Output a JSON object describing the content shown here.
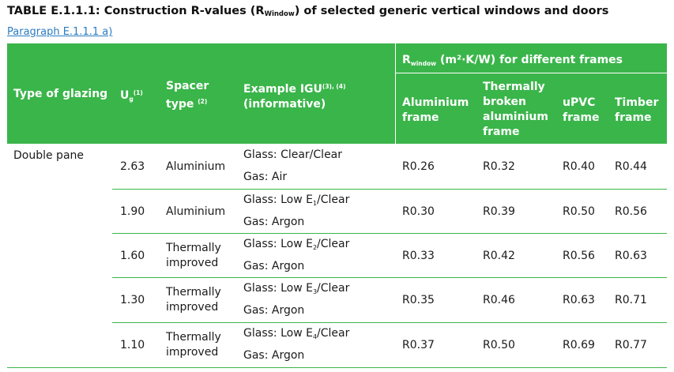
{
  "title": {
    "prefix": "TABLE E.1.1.1:",
    "text_before": " Construction R-values (R",
    "sub": "Window",
    "text_after": ") of selected generic vertical windows and doors"
  },
  "paragraph_link": "Paragraph E.1.1.1 a)",
  "header": {
    "type_of_glazing": "Type of glazing",
    "ug": "U",
    "ug_sub": "g",
    "ug_sup": "(1)",
    "spacer_line1": "Spacer",
    "spacer_line2": "type",
    "spacer_sup": "(2)",
    "igu_line1": "Example IGU",
    "igu_sup": "(3), (4)",
    "igu_line2": "(informative)",
    "rwindow_r": "R",
    "rwindow_sub": "window",
    "rwindow_rest": " (m²·K/W) for different frames",
    "aluminium_line1": "Aluminium",
    "aluminium_line2": "frame",
    "thermally_line1": "Thermally",
    "thermally_line2": "broken",
    "thermally_line3": "aluminium",
    "thermally_line4": "frame",
    "upvc_line1": "uPVC",
    "upvc_line2": "frame",
    "timber_line1": "Timber",
    "timber_line2": "frame"
  },
  "glazing_type": "Double pane",
  "rows": [
    {
      "ug": "2.63",
      "spacer1": "Aluminium",
      "spacer2": "",
      "glass_pre": "Glass: Clear/Clear",
      "glass_sub": "",
      "glass_post": "",
      "gas": "Gas: Air",
      "alu": "R0.26",
      "tb": "R0.32",
      "upvc": "R0.40",
      "timber": "R0.44"
    },
    {
      "ug": "1.90",
      "spacer1": "Aluminium",
      "spacer2": "",
      "glass_pre": "Glass: Low E",
      "glass_sub": "1",
      "glass_post": "/Clear",
      "gas": "Gas: Argon",
      "alu": "R0.30",
      "tb": "R0.39",
      "upvc": "R0.50",
      "timber": "R0.56"
    },
    {
      "ug": "1.60",
      "spacer1": "Thermally",
      "spacer2": "improved",
      "glass_pre": "Glass: Low E",
      "glass_sub": "2",
      "glass_post": "/Clear",
      "gas": "Gas: Argon",
      "alu": "R0.33",
      "tb": "R0.42",
      "upvc": "R0.56",
      "timber": "R0.63"
    },
    {
      "ug": "1.30",
      "spacer1": "Thermally",
      "spacer2": "improved",
      "glass_pre": "Glass: Low E",
      "glass_sub": "3",
      "glass_post": "/Clear",
      "gas": "Gas: Argon",
      "alu": "R0.35",
      "tb": "R0.46",
      "upvc": "R0.63",
      "timber": "R0.71"
    },
    {
      "ug": "1.10",
      "spacer1": "Thermally",
      "spacer2": "improved",
      "glass_pre": "Glass: Low E",
      "glass_sub": "4",
      "glass_post": "/Clear",
      "gas": "Gas: Argon",
      "alu": "R0.37",
      "tb": "R0.50",
      "upvc": "R0.69",
      "timber": "R0.77"
    }
  ],
  "colors": {
    "header_bg": "#3ab54a",
    "link": "#2a7bbf"
  }
}
